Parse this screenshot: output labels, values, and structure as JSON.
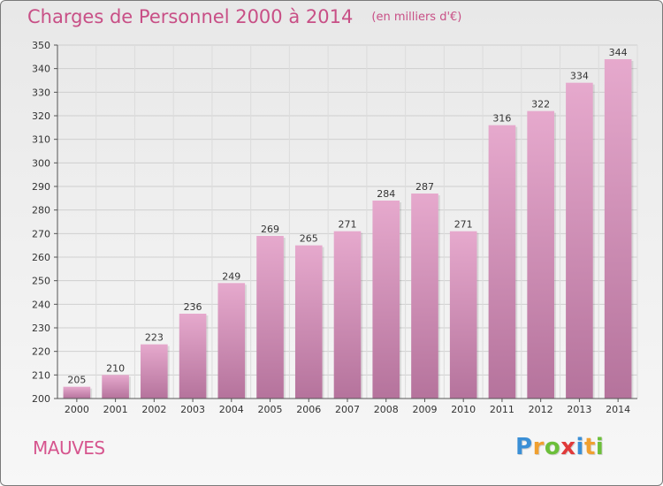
{
  "chart_data": {
    "type": "bar",
    "title": "Charges de Personnel 2000 à 2014",
    "subtitle": "(en milliers d'€)",
    "categories": [
      "2000",
      "2001",
      "2002",
      "2003",
      "2004",
      "2005",
      "2006",
      "2007",
      "2008",
      "2009",
      "2010",
      "2011",
      "2012",
      "2013",
      "2014"
    ],
    "values": [
      205,
      210,
      223,
      236,
      249,
      269,
      265,
      271,
      284,
      287,
      271,
      316,
      322,
      334,
      344
    ],
    "ylim": [
      200,
      350
    ],
    "yticks": [
      200,
      210,
      220,
      230,
      240,
      250,
      260,
      270,
      280,
      290,
      300,
      310,
      320,
      330,
      340,
      350
    ],
    "xlabel": "",
    "ylabel": "",
    "grid": true,
    "bar_color_top": "#e6a9cd",
    "bar_color_bottom": "#b5739c"
  },
  "footer": {
    "town": "MAUVES",
    "logo_letters": [
      "P",
      "r",
      "o",
      "x",
      "i",
      "t",
      "i"
    ],
    "logo_colors": [
      "#3a8fd6",
      "#f0a030",
      "#6cbf3a",
      "#e03a3a",
      "#3a8fd6",
      "#f0a030",
      "#6cbf3a"
    ]
  }
}
